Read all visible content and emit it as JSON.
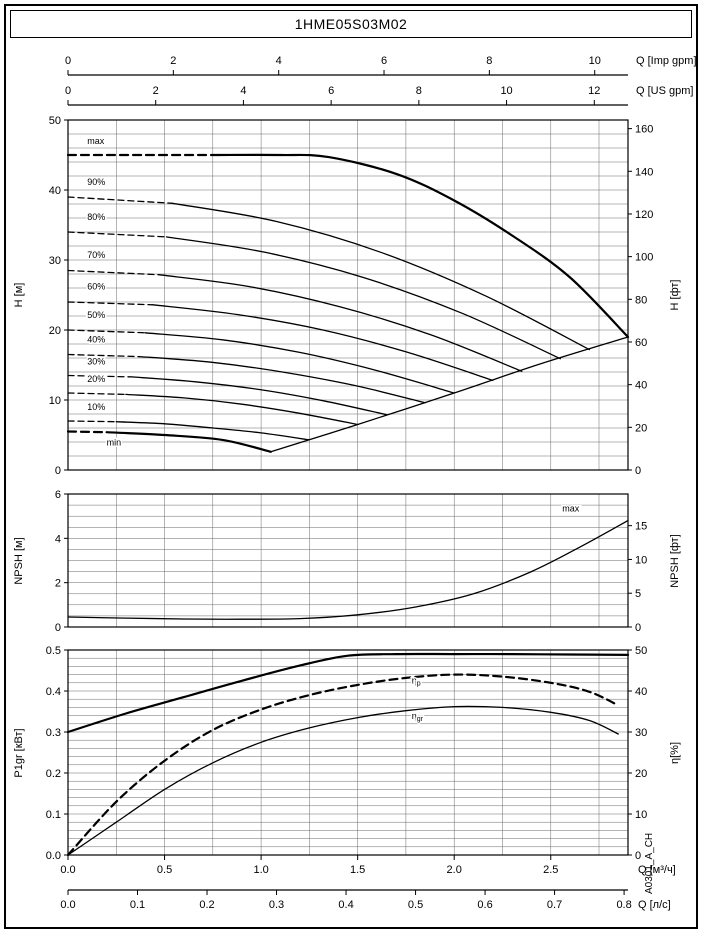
{
  "title": "1HME05S03M02",
  "watermark": "A0301_A_CH",
  "x_axes": {
    "q_max_m3h": 2.9,
    "top": [
      {
        "name": "imp-gpm",
        "label": "Q [Imp gpm]",
        "ticks": [
          "0",
          "2",
          "4",
          "6",
          "8",
          "10"
        ],
        "m3h_per_unit": 0.27276
      },
      {
        "name": "us-gpm",
        "label": "Q [US gpm]",
        "ticks": [
          "0",
          "2",
          "4",
          "6",
          "8",
          "10",
          "12"
        ],
        "m3h_per_unit": 0.22712
      }
    ],
    "bottom": [
      {
        "name": "m3h",
        "label": "Q [м³/ч]",
        "ticks": [
          "0.0",
          "0.5",
          "1.0",
          "1.5",
          "2.0",
          "2.5"
        ],
        "m3h_per_unit": 1
      },
      {
        "name": "l-s",
        "label": "Q [л/с]",
        "ticks": [
          "0.0",
          "0.1",
          "0.2",
          "0.3",
          "0.4",
          "0.5",
          "0.6",
          "0.7",
          "0.8"
        ],
        "m3h_per_unit": 3.5997
      }
    ]
  },
  "chart_data": [
    {
      "type": "line",
      "name": "head-curves",
      "x_unit": "м³/ч",
      "x_range": [
        0,
        2.9
      ],
      "y_left": {
        "label": "H [м]",
        "min": 0,
        "max": 50,
        "grid_step": 2,
        "ticks": [
          "0",
          "10",
          "20",
          "30",
          "40",
          "50"
        ]
      },
      "y_right": {
        "label": "H [фт]",
        "m_per_unit": 0.3048,
        "ticks": [
          "0",
          "20",
          "40",
          "60",
          "80",
          "100",
          "120",
          "140",
          "160"
        ]
      },
      "series": [
        {
          "name": "max-dash",
          "bold": true,
          "dashed": true,
          "points": [
            [
              0,
              45
            ],
            [
              0.4,
              45
            ],
            [
              0.78,
              45
            ]
          ]
        },
        {
          "name": "max",
          "bold": true,
          "points": [
            [
              0.78,
              45
            ],
            [
              1.1,
              45
            ],
            [
              1.35,
              44.7
            ],
            [
              1.7,
              42.3
            ],
            [
              2.0,
              38.5
            ],
            [
              2.3,
              33.5
            ],
            [
              2.6,
              27.5
            ],
            [
              2.9,
              19
            ]
          ]
        },
        {
          "name": "90pct-dash",
          "dashed": true,
          "points": [
            [
              0,
              39
            ],
            [
              0.54,
              38.1
            ]
          ]
        },
        {
          "name": "90pct",
          "points": [
            [
              0.54,
              38.1
            ],
            [
              1.08,
              35.5
            ],
            [
              1.62,
              31.1
            ],
            [
              2.16,
              24.9
            ],
            [
              2.7,
              17.2
            ]
          ]
        },
        {
          "name": "80pct-dash",
          "dashed": true,
          "points": [
            [
              0,
              34
            ],
            [
              0.51,
              33.3
            ]
          ]
        },
        {
          "name": "80pct",
          "points": [
            [
              0.51,
              33.3
            ],
            [
              1.02,
              31.1
            ],
            [
              1.53,
              27.5
            ],
            [
              2.04,
              22.4
            ],
            [
              2.55,
              15.9
            ]
          ]
        },
        {
          "name": "70pct-dash",
          "dashed": true,
          "points": [
            [
              0,
              28.5
            ],
            [
              0.47,
              27.9
            ]
          ]
        },
        {
          "name": "70pct",
          "points": [
            [
              0.47,
              27.9
            ],
            [
              0.94,
              26.2
            ],
            [
              1.41,
              23.3
            ],
            [
              1.88,
              19.3
            ],
            [
              2.35,
              14.1
            ]
          ]
        },
        {
          "name": "60pct-dash",
          "dashed": true,
          "points": [
            [
              0,
              24
            ],
            [
              0.44,
              23.6
            ]
          ]
        },
        {
          "name": "60pct",
          "points": [
            [
              0.44,
              23.6
            ],
            [
              0.88,
              22.2
            ],
            [
              1.32,
              20
            ],
            [
              1.76,
              16.8
            ],
            [
              2.2,
              12.8
            ]
          ]
        },
        {
          "name": "50pct-dash",
          "dashed": true,
          "points": [
            [
              0,
              20
            ],
            [
              0.4,
              19.6
            ]
          ]
        },
        {
          "name": "50pct",
          "points": [
            [
              0.4,
              19.6
            ],
            [
              0.8,
              18.6
            ],
            [
              1.2,
              16.8
            ],
            [
              1.6,
              14.2
            ],
            [
              2.0,
              11
            ]
          ]
        },
        {
          "name": "40pct-dash",
          "dashed": true,
          "points": [
            [
              0,
              16.5
            ],
            [
              0.37,
              16.2
            ]
          ]
        },
        {
          "name": "40pct",
          "points": [
            [
              0.37,
              16.2
            ],
            [
              0.74,
              15.4
            ],
            [
              1.11,
              14
            ],
            [
              1.48,
              12.1
            ],
            [
              1.85,
              9.6
            ]
          ]
        },
        {
          "name": "30pct-dash",
          "dashed": true,
          "points": [
            [
              0,
              13.5
            ],
            [
              0.33,
              13.3
            ]
          ]
        },
        {
          "name": "30pct",
          "points": [
            [
              0.33,
              13.3
            ],
            [
              0.66,
              12.6
            ],
            [
              0.99,
              11.5
            ],
            [
              1.32,
              9.9
            ],
            [
              1.65,
              7.9
            ]
          ]
        },
        {
          "name": "20pct-dash",
          "dashed": true,
          "points": [
            [
              0,
              11
            ],
            [
              0.3,
              10.8
            ]
          ]
        },
        {
          "name": "20pct",
          "points": [
            [
              0.3,
              10.8
            ],
            [
              0.6,
              10.3
            ],
            [
              0.9,
              9.4
            ],
            [
              1.2,
              8.1
            ],
            [
              1.5,
              6.5
            ]
          ]
        },
        {
          "name": "10pct-dash",
          "dashed": true,
          "points": [
            [
              0,
              7
            ],
            [
              0.25,
              6.9
            ]
          ]
        },
        {
          "name": "10pct",
          "points": [
            [
              0.25,
              6.9
            ],
            [
              0.5,
              6.6
            ],
            [
              0.75,
              6.0
            ],
            [
              1.0,
              5.3
            ],
            [
              1.25,
              4.3
            ]
          ]
        },
        {
          "name": "min-dash",
          "bold": true,
          "dashed": true,
          "points": [
            [
              0,
              5.5
            ],
            [
              0.2,
              5.4
            ]
          ]
        },
        {
          "name": "min",
          "bold": true,
          "points": [
            [
              0.2,
              5.4
            ],
            [
              0.5,
              5.0
            ],
            [
              0.8,
              4.3
            ],
            [
              1.05,
              2.6
            ]
          ]
        },
        {
          "name": "limit-envelope",
          "points": [
            [
              1.05,
              2.6
            ],
            [
              1.5,
              6.5
            ],
            [
              2.0,
              11.0
            ],
            [
              2.45,
              15.2
            ],
            [
              2.9,
              19
            ]
          ]
        }
      ],
      "labels": [
        {
          "text": "max",
          "q": 0.1,
          "y": 46.6
        },
        {
          "text": "90%",
          "q": 0.1,
          "y": 40.7
        },
        {
          "text": "80%",
          "q": 0.1,
          "y": 35.7
        },
        {
          "text": "70%",
          "q": 0.1,
          "y": 30.3
        },
        {
          "text": "60%",
          "q": 0.1,
          "y": 25.8
        },
        {
          "text": "50%",
          "q": 0.1,
          "y": 21.7
        },
        {
          "text": "40%",
          "q": 0.1,
          "y": 18.2
        },
        {
          "text": "30%",
          "q": 0.1,
          "y": 15.1
        },
        {
          "text": "20%",
          "q": 0.1,
          "y": 12.6
        },
        {
          "text": "10%",
          "q": 0.1,
          "y": 8.6
        },
        {
          "text": "min",
          "q": 0.2,
          "y": 3.5
        }
      ]
    },
    {
      "type": "line",
      "name": "npsh-curve",
      "x_unit": "м³/ч",
      "x_range": [
        0,
        2.9
      ],
      "y_left": {
        "label": "NPSH [м]",
        "min": 0,
        "max": 6,
        "grid_step": 0.5,
        "ticks": [
          "0",
          "2",
          "4",
          "6"
        ]
      },
      "y_right": {
        "label": "NPSH [фт]",
        "m_per_unit": 0.3048,
        "ticks": [
          "0",
          "5",
          "10",
          "15"
        ]
      },
      "series": [
        {
          "name": "npsh-max",
          "points": [
            [
              0,
              0.45
            ],
            [
              0.3,
              0.4
            ],
            [
              0.6,
              0.36
            ],
            [
              0.9,
              0.35
            ],
            [
              1.2,
              0.38
            ],
            [
              1.5,
              0.55
            ],
            [
              1.8,
              0.9
            ],
            [
              2.1,
              1.5
            ],
            [
              2.4,
              2.5
            ],
            [
              2.65,
              3.6
            ],
            [
              2.9,
              4.8
            ]
          ]
        }
      ],
      "labels": [
        {
          "text": "max",
          "q": 2.56,
          "y": 5.2
        }
      ]
    },
    {
      "type": "line",
      "name": "power-and-efficiency",
      "x_unit": "м³/ч",
      "x_range": [
        0,
        2.9
      ],
      "y_left": {
        "label": "P1gr [кВт]",
        "min": 0,
        "max": 0.5,
        "grid_step": 0.02,
        "ticks": [
          "0.0",
          "0.1",
          "0.2",
          "0.3",
          "0.4",
          "0.5"
        ]
      },
      "y_right": {
        "label": "η[%]",
        "min": 0,
        "max": 50,
        "ticks": [
          "0",
          "10",
          "20",
          "30",
          "40",
          "50"
        ]
      },
      "series": [
        {
          "name": "p1-max",
          "axis": "left",
          "bold": true,
          "points": [
            [
              0,
              0.3
            ],
            [
              0.3,
              0.345
            ],
            [
              0.6,
              0.385
            ],
            [
              0.9,
              0.425
            ],
            [
              1.2,
              0.462
            ],
            [
              1.45,
              0.486
            ],
            [
              1.7,
              0.49
            ],
            [
              2.0,
              0.49
            ],
            [
              2.3,
              0.49
            ],
            [
              2.6,
              0.489
            ],
            [
              2.9,
              0.488
            ]
          ]
        },
        {
          "name": "eta-p",
          "axis": "right",
          "dashed": true,
          "bold": true,
          "points": [
            [
              0,
              0
            ],
            [
              0.25,
              13
            ],
            [
              0.5,
              23
            ],
            [
              0.75,
              30.5
            ],
            [
              1.0,
              35.5
            ],
            [
              1.25,
              39
            ],
            [
              1.5,
              41.5
            ],
            [
              1.75,
              43.2
            ],
            [
              2.0,
              44
            ],
            [
              2.25,
              43.5
            ],
            [
              2.5,
              42
            ],
            [
              2.7,
              39.8
            ],
            [
              2.85,
              36.5
            ]
          ]
        },
        {
          "name": "eta-gr",
          "axis": "right",
          "points": [
            [
              0,
              0
            ],
            [
              0.25,
              8
            ],
            [
              0.5,
              16
            ],
            [
              0.75,
              22.5
            ],
            [
              1.0,
              27.5
            ],
            [
              1.25,
              31
            ],
            [
              1.5,
              33.5
            ],
            [
              1.75,
              35.2
            ],
            [
              2.0,
              36.2
            ],
            [
              2.25,
              36
            ],
            [
              2.5,
              34.8
            ],
            [
              2.7,
              32.8
            ],
            [
              2.85,
              29.5
            ]
          ]
        }
      ],
      "labels": [
        {
          "text": "η",
          "sub": "p",
          "axis": "right",
          "q": 1.78,
          "y": 41.8
        },
        {
          "text": "η",
          "sub": "gr",
          "axis": "right",
          "q": 1.78,
          "y": 33.2
        }
      ]
    }
  ]
}
